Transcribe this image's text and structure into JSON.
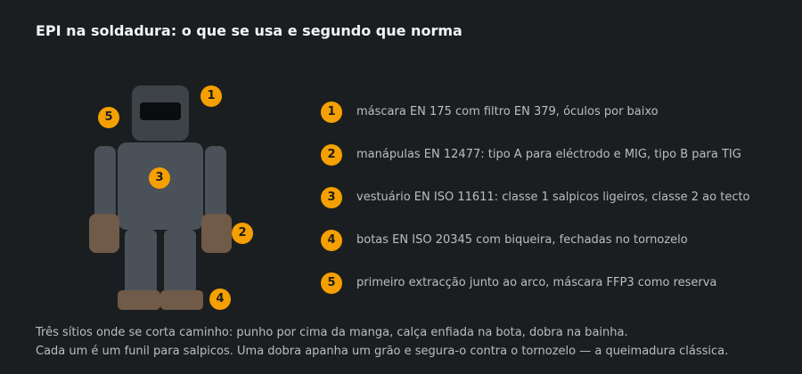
{
  "title": "EPI na soldadura: o que se usa e segundo que norma",
  "colors": {
    "background": "#1b1e21",
    "badge": "#f5a000",
    "body": "#4a5158",
    "helmet": "#3e4348",
    "leather": "#705a48"
  },
  "figure": {
    "markers": [
      "1",
      "5",
      "3",
      "2",
      "4"
    ]
  },
  "legend": [
    {
      "num": "1",
      "text": "máscara EN 175 com filtro EN 379, óculos por baixo"
    },
    {
      "num": "2",
      "text": "manápulas EN 12477: tipo A para eléctrodo e MIG, tipo B para TIG"
    },
    {
      "num": "3",
      "text": "vestuário EN ISO 11611: classe 1 salpicos ligeiros, classe 2 ao tecto"
    },
    {
      "num": "4",
      "text": "botas EN ISO 20345 com biqueira, fechadas no tornozelo"
    },
    {
      "num": "5",
      "text": "primeiro extracção junto ao arco, máscara FFP3 como reserva"
    }
  ],
  "caption": {
    "line1": "Três sítios onde se corta caminho: punho por cima da manga, calça enfiada na bota, dobra na bainha.",
    "line2": "Cada um é um funil para salpicos. Uma dobra apanha um grão e segura-o contra o tornozelo — a queimadura clássica."
  }
}
